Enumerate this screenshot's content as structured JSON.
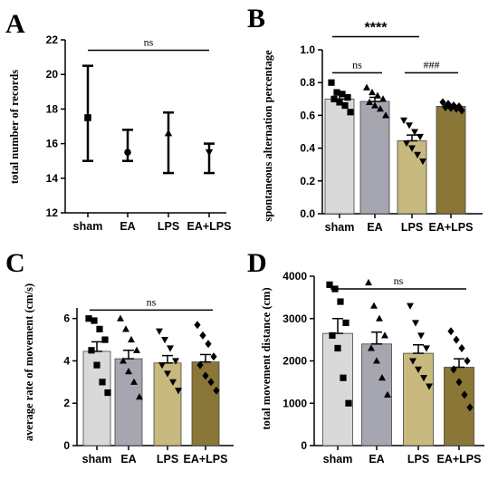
{
  "colors": {
    "sham": "#d9d9d9",
    "EA": "#a6a6b0",
    "LPS": "#c8b97e",
    "EA+LPS": "#8a7636",
    "axis": "#000000"
  },
  "chart_data": [
    {
      "id": "A",
      "panel_label": "A",
      "type": "scatter",
      "style": "mean-range",
      "ylabel": "total number of records",
      "categories": [
        "sham",
        "EA",
        "LPS",
        "EA+LPS"
      ],
      "ylim": [
        12,
        22
      ],
      "yticks": [
        12,
        14,
        16,
        18,
        20,
        22
      ],
      "markers": [
        "square",
        "circle",
        "triangle-up",
        "triangle-down"
      ],
      "series": [
        {
          "mean": [
            17.5,
            15.5,
            16.6,
            15.5
          ],
          "low": [
            15.0,
            15.0,
            14.3,
            14.3
          ],
          "high": [
            20.5,
            16.8,
            17.8,
            16.0
          ]
        }
      ],
      "annotations": [
        {
          "from": 0,
          "to": 3,
          "text": "ns",
          "y": 21.4
        }
      ]
    },
    {
      "id": "B",
      "panel_label": "B",
      "type": "bar",
      "ylabel": "spontaneous alternation percentage",
      "categories": [
        "sham",
        "EA",
        "LPS",
        "EA+LPS"
      ],
      "ylim": [
        0,
        1.0
      ],
      "yticks": [
        "0.0",
        "0.2",
        "0.4",
        "0.6",
        "0.8",
        "1.0"
      ],
      "markers": [
        "square",
        "triangle-up",
        "triangle-down",
        "diamond"
      ],
      "series": [
        {
          "mean": [
            0.7,
            0.685,
            0.445,
            0.655
          ],
          "sem": [
            0.025,
            0.025,
            0.035,
            0.01
          ]
        }
      ],
      "points": [
        [
          0.8,
          0.74,
          0.73,
          0.71,
          0.7,
          0.68,
          0.66,
          0.62
        ],
        [
          0.77,
          0.74,
          0.72,
          0.7,
          0.68,
          0.66,
          0.64,
          0.6
        ],
        [
          0.57,
          0.54,
          0.5,
          0.47,
          0.43,
          0.4,
          0.36,
          0.32
        ],
        [
          0.68,
          0.67,
          0.66,
          0.655,
          0.65,
          0.645,
          0.64,
          0.63
        ]
      ],
      "annotations": [
        {
          "from": 0,
          "to": 2,
          "text": "****",
          "y": 1.08
        },
        {
          "from": 0,
          "to": 1,
          "text": "ns",
          "y": 0.86
        },
        {
          "from": 2,
          "to": 3,
          "text": "###",
          "y": 0.86
        }
      ]
    },
    {
      "id": "C",
      "panel_label": "C",
      "type": "bar",
      "ylabel": "average rate of movement (cm/s)",
      "categories": [
        "sham",
        "EA",
        "LPS",
        "EA+LPS"
      ],
      "ylim": [
        0,
        6.5
      ],
      "yticks": [
        0,
        2,
        4,
        6
      ],
      "markers": [
        "square",
        "triangle-up",
        "triangle-down",
        "diamond"
      ],
      "series": [
        {
          "mean": [
            4.45,
            4.1,
            3.9,
            3.95
          ],
          "sem": [
            0.45,
            0.4,
            0.35,
            0.35
          ]
        }
      ],
      "points": [
        [
          6.0,
          5.9,
          5.5,
          5.0,
          4.5,
          3.8,
          3.0,
          2.5
        ],
        [
          6.0,
          5.5,
          5.0,
          4.5,
          4.0,
          3.5,
          3.0,
          2.3
        ],
        [
          5.4,
          5.0,
          4.6,
          4.0,
          3.8,
          3.4,
          3.0,
          2.6
        ],
        [
          5.7,
          5.2,
          4.8,
          4.2,
          3.8,
          3.3,
          3.0,
          2.6
        ]
      ],
      "annotations": [
        {
          "from": 0,
          "to": 3,
          "text": "ns",
          "y": 6.4
        }
      ]
    },
    {
      "id": "D",
      "panel_label": "D",
      "type": "bar",
      "ylabel": "total movement distance (cm)",
      "categories": [
        "sham",
        "EA",
        "LPS",
        "EA+LPS"
      ],
      "ylim": [
        0,
        4000
      ],
      "yticks": [
        0,
        1000,
        2000,
        3000,
        4000
      ],
      "markers": [
        "square",
        "triangle-up",
        "triangle-down",
        "diamond"
      ],
      "series": [
        {
          "mean": [
            2650,
            2400,
            2180,
            1850
          ],
          "sem": [
            350,
            280,
            200,
            200
          ]
        }
      ],
      "points": [
        [
          3800,
          3700,
          3400,
          2900,
          2600,
          2300,
          1600,
          1000
        ],
        [
          3850,
          3300,
          3000,
          2600,
          2300,
          2000,
          1600,
          1200
        ],
        [
          3300,
          2900,
          2600,
          2300,
          2000,
          1800,
          1600,
          1400
        ],
        [
          2700,
          2500,
          2300,
          2000,
          1800,
          1500,
          1200,
          900
        ]
      ],
      "annotations": [
        {
          "from": 0,
          "to": 3,
          "text": "ns",
          "y": 3700
        }
      ]
    }
  ]
}
